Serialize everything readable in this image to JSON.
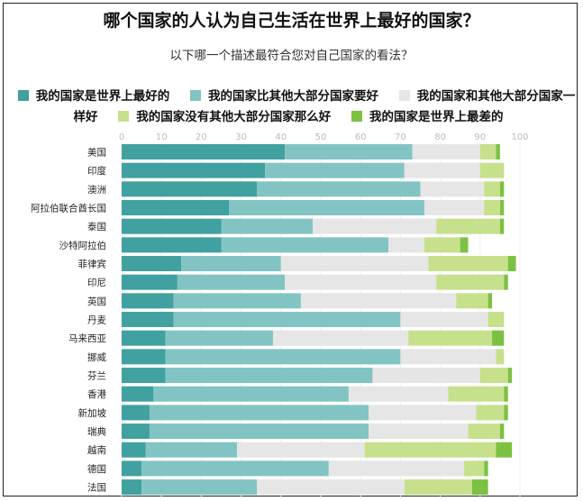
{
  "title": "哪个国家的人认为自己生活在世界上最好的国家？",
  "subtitle": "以下哪一个描述最符合您对自己国家的看法？",
  "chart_data": {
    "type": "bar",
    "orientation": "horizontal",
    "stacked": true,
    "title": "哪个国家的人认为自己生活在世界上最好的国家？",
    "subtitle": "以下哪一个描述最符合您对自己国家的看法？",
    "xlim": [
      0,
      100
    ],
    "xticks": [
      "0",
      "10",
      "20",
      "30",
      "40",
      "50",
      "60",
      "70",
      "80",
      "90",
      "100"
    ],
    "legend_position": "top",
    "categories": [
      "美国",
      "印度",
      "澳洲",
      "阿拉伯联合酋长国",
      "泰国",
      "沙特阿拉伯",
      "菲律宾",
      "印尼",
      "英国",
      "丹麦",
      "马来西亚",
      "挪威",
      "芬兰",
      "香港",
      "新加坡",
      "瑞典",
      "越南",
      "德国",
      "法国"
    ],
    "series": [
      {
        "name": "我的国家是世界上最好的",
        "color": "#41a0a0",
        "values": [
          41,
          36,
          34,
          27,
          25,
          25,
          15,
          14,
          13,
          13,
          11,
          11,
          11,
          8,
          7,
          7,
          6,
          5,
          5
        ]
      },
      {
        "name": "我的国家比其他大部分国家要好",
        "color": "#82c4c4",
        "values": [
          32,
          35,
          41,
          49,
          23,
          42,
          25,
          27,
          32,
          57,
          27,
          59,
          52,
          49,
          55,
          55,
          23,
          47,
          29
        ]
      },
      {
        "name": "我的国家和其他大部分国家一样好",
        "color": "#e6e6e6",
        "values": [
          17,
          19,
          16,
          15,
          31,
          9,
          37,
          38,
          39,
          22,
          34,
          24,
          27,
          25,
          27,
          25,
          32,
          34,
          37
        ]
      },
      {
        "name": "我的国家没有其他大部分国家那么好",
        "color": "#c6e08c",
        "values": [
          4,
          6,
          4,
          4,
          16,
          9,
          20,
          17,
          8,
          4,
          21,
          2,
          7,
          14,
          7,
          8,
          33,
          5,
          17
        ]
      },
      {
        "name": "我的国家是世界上最差的",
        "color": "#7cc142",
        "values": [
          1,
          0,
          1,
          1,
          1,
          2,
          2,
          1,
          1,
          0,
          3,
          0,
          1,
          1,
          1,
          1,
          4,
          1,
          4
        ]
      }
    ]
  }
}
